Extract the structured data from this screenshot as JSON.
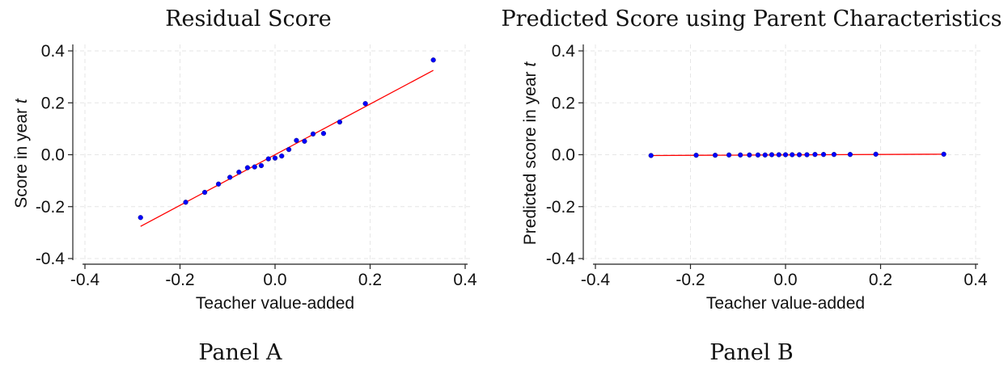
{
  "chart_data": [
    {
      "type": "scatter",
      "title": "Residual Score",
      "caption": "Panel A",
      "xlabel": "Teacher value-added",
      "ylabel": "Score in year",
      "ylabel_var": "t",
      "xlim": [
        -0.4,
        0.4
      ],
      "ylim": [
        -0.4,
        0.4
      ],
      "xticks": [
        "-0.4",
        "-0.2",
        "0.0",
        "0.2",
        "0.4"
      ],
      "yticks": [
        "-0.4",
        "-0.2",
        "0.0",
        "0.2",
        "0.4"
      ],
      "grid": true,
      "series": [
        {
          "marker_color": "#0000ff",
          "points": [
            [
              -0.283,
              -0.242
            ],
            [
              -0.188,
              -0.183
            ],
            [
              -0.148,
              -0.145
            ],
            [
              -0.119,
              -0.113
            ],
            [
              -0.095,
              -0.087
            ],
            [
              -0.076,
              -0.067
            ],
            [
              -0.058,
              -0.05
            ],
            [
              -0.043,
              -0.047
            ],
            [
              -0.029,
              -0.042
            ],
            [
              -0.014,
              -0.016
            ],
            [
              0.0,
              -0.013
            ],
            [
              0.014,
              -0.005
            ],
            [
              0.029,
              0.02
            ],
            [
              0.045,
              0.055
            ],
            [
              0.062,
              0.052
            ],
            [
              0.08,
              0.08
            ],
            [
              0.102,
              0.082
            ],
            [
              0.136,
              0.126
            ],
            [
              0.19,
              0.197
            ],
            [
              0.333,
              0.365
            ]
          ]
        }
      ],
      "fit_line": {
        "color": "#ff0000",
        "x": [
          -0.283,
          0.333
        ],
        "y": [
          -0.276,
          0.325
        ]
      }
    },
    {
      "type": "scatter",
      "title": "Predicted Score using Parent Characteristics",
      "caption": "Panel B",
      "xlabel": "Teacher value-added",
      "ylabel": "Predicted score in year",
      "ylabel_var": "t",
      "xlim": [
        -0.4,
        0.4
      ],
      "ylim": [
        -0.4,
        0.4
      ],
      "xticks": [
        "-0.4",
        "-0.2",
        "0.0",
        "0.2",
        "0.4"
      ],
      "yticks": [
        "-0.4",
        "-0.2",
        "0.0",
        "0.2",
        "0.4"
      ],
      "grid": true,
      "series": [
        {
          "marker_color": "#0000ff",
          "points": [
            [
              -0.283,
              -0.003
            ],
            [
              -0.188,
              -0.002
            ],
            [
              -0.148,
              -0.002
            ],
            [
              -0.119,
              -0.001
            ],
            [
              -0.095,
              -0.001
            ],
            [
              -0.076,
              -0.001
            ],
            [
              -0.058,
              -0.001
            ],
            [
              -0.043,
              -0.001
            ],
            [
              -0.029,
              0.0
            ],
            [
              -0.014,
              0.0
            ],
            [
              0.0,
              0.0
            ],
            [
              0.014,
              0.0
            ],
            [
              0.029,
              0.0
            ],
            [
              0.045,
              0.0
            ],
            [
              0.062,
              0.001
            ],
            [
              0.08,
              0.001
            ],
            [
              0.102,
              0.001
            ],
            [
              0.136,
              0.001
            ],
            [
              0.19,
              0.002
            ],
            [
              0.333,
              0.002
            ]
          ]
        }
      ],
      "fit_line": {
        "color": "#ff0000",
        "x": [
          -0.283,
          0.333
        ],
        "y": [
          -0.003,
          0.002
        ]
      }
    }
  ]
}
